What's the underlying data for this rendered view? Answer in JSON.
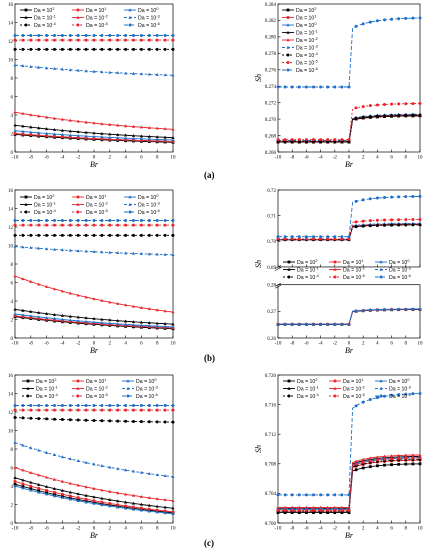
{
  "panel_labels": [
    "(a)",
    "(b)",
    "(c)"
  ],
  "legend_labels": [
    "Da = 10^2",
    "Da = 10^1",
    "Da = 10^0",
    "Da = 10^-1",
    "Da = 10^-2",
    "Da = 10^-3",
    "Da = 10^-4",
    "Da = 10^-5",
    "Da = 10^-6"
  ],
  "series_styles": [
    {
      "color": "#000000",
      "marker": "square",
      "dash": ""
    },
    {
      "color": "#e8262c",
      "marker": "circle",
      "dash": ""
    },
    {
      "color": "#1f6fc8",
      "marker": "triangle",
      "dash": ""
    },
    {
      "color": "#000000",
      "marker": "triangle",
      "dash": ""
    },
    {
      "color": "#e8262c",
      "marker": "triangle",
      "dash": ""
    },
    {
      "color": "#1f6fc8",
      "marker": "triangle",
      "dash": "3,2"
    },
    {
      "color": "#000000",
      "marker": "circle",
      "dash": "2,2"
    },
    {
      "color": "#e8262c",
      "marker": "circle",
      "dash": "2,2"
    },
    {
      "color": "#1f6fc8",
      "marker": "circle",
      "dash": "4,2"
    }
  ],
  "chart_data": [
    {
      "type": "line",
      "id": "a-nu",
      "xlabel": "Br",
      "ylabel": "Nu",
      "xlim": [
        -10,
        10
      ],
      "ylim": [
        0,
        16
      ],
      "xticks": [
        -10,
        -8,
        -6,
        -4,
        -2,
        0,
        2,
        4,
        6,
        8,
        10
      ],
      "yticks": [
        0,
        2,
        4,
        6,
        8,
        10,
        12,
        14,
        16
      ],
      "legend_position": "top-right",
      "series": [
        {
          "name": "Da = 10^2",
          "from": 1.9,
          "to": 1.05,
          "shape": "decay"
        },
        {
          "name": "Da = 10^1",
          "from": 2.0,
          "to": 1.15,
          "shape": "decay"
        },
        {
          "name": "Da = 10^0",
          "from": 2.3,
          "to": 1.3,
          "shape": "decay"
        },
        {
          "name": "Da = 10^-1",
          "from": 2.9,
          "to": 1.55,
          "shape": "decay"
        },
        {
          "name": "Da = 10^-2",
          "from": 4.3,
          "to": 2.45,
          "shape": "decay"
        },
        {
          "name": "Da = 10^-3",
          "from": 9.4,
          "to": 8.3,
          "shape": "decay"
        },
        {
          "name": "Da = 10^-4",
          "from": 11.1,
          "to": 11.1,
          "shape": "flat"
        },
        {
          "name": "Da = 10^-5",
          "from": 12.1,
          "to": 12.1,
          "shape": "flat"
        },
        {
          "name": "Da = 10^-6",
          "from": 12.6,
          "to": 12.6,
          "shape": "flat"
        }
      ]
    },
    {
      "type": "line",
      "id": "a-sh",
      "xlabel": "Br",
      "ylabel": "Sh",
      "xlim": [
        -10,
        10
      ],
      "ylim": [
        0.266,
        0.284
      ],
      "xticks": [
        -10,
        -8,
        -6,
        -4,
        -2,
        0,
        2,
        4,
        6,
        8,
        10
      ],
      "yticks": [
        0.266,
        0.268,
        0.27,
        0.272,
        0.274,
        0.276,
        0.278,
        0.28,
        0.282,
        0.284
      ],
      "legend_position": "top-left",
      "series": [
        {
          "name": "Da = 10^2",
          "from": 0.2672,
          "to": 0.2704,
          "shape": "step"
        },
        {
          "name": "Da = 10^1",
          "from": 0.2672,
          "to": 0.2704,
          "shape": "step"
        },
        {
          "name": "Da = 10^0",
          "from": 0.2673,
          "to": 0.2705,
          "shape": "step"
        },
        {
          "name": "Da = 10^-1",
          "from": 0.2672,
          "to": 0.2704,
          "shape": "step"
        },
        {
          "name": "Da = 10^-2",
          "from": 0.2673,
          "to": 0.2705,
          "shape": "step"
        },
        {
          "name": "Da = 10^-3",
          "from": 0.2674,
          "to": 0.2706,
          "shape": "step"
        },
        {
          "name": "Da = 10^-4",
          "from": 0.2673,
          "to": 0.2705,
          "shape": "step"
        },
        {
          "name": "Da = 10^-5",
          "from": 0.2675,
          "to": 0.2719,
          "shape": "step"
        },
        {
          "name": "Da = 10^-6",
          "from": 0.2739,
          "to": 0.2823,
          "shape": "step"
        }
      ]
    },
    {
      "type": "line",
      "id": "b-nu",
      "xlabel": "Br",
      "ylabel": "Nu",
      "xlim": [
        -10,
        10
      ],
      "ylim": [
        0,
        16
      ],
      "xticks": [
        -10,
        -8,
        -6,
        -4,
        -2,
        0,
        2,
        4,
        6,
        8,
        10
      ],
      "yticks": [
        0,
        2,
        4,
        6,
        8,
        10,
        12,
        14,
        16
      ],
      "legend_position": "top",
      "series": [
        {
          "name": "Da = 10^2",
          "from": 2.3,
          "to": 1.0,
          "shape": "decay"
        },
        {
          "name": "Da = 10^1",
          "from": 2.4,
          "to": 1.1,
          "shape": "decay"
        },
        {
          "name": "Da = 10^0",
          "from": 2.6,
          "to": 1.2,
          "shape": "decay"
        },
        {
          "name": "Da = 10^-1",
          "from": 3.1,
          "to": 1.5,
          "shape": "decay"
        },
        {
          "name": "Da = 10^-2",
          "from": 6.7,
          "to": 2.8,
          "shape": "decay"
        },
        {
          "name": "Da = 10^-3",
          "from": 9.9,
          "to": 9.0,
          "shape": "decay"
        },
        {
          "name": "Da = 10^-4",
          "from": 11.1,
          "to": 11.1,
          "shape": "flat"
        },
        {
          "name": "Da = 10^-5",
          "from": 12.2,
          "to": 12.2,
          "shape": "flat"
        },
        {
          "name": "Da = 10^-6",
          "from": 12.7,
          "to": 12.7,
          "shape": "flat"
        }
      ]
    },
    {
      "type": "line",
      "id": "b-sh",
      "xlabel": "Br",
      "ylabel": "Sh",
      "broken_axis": true,
      "xlim": [
        -10,
        10
      ],
      "ylim_upper": [
        0.69,
        0.72
      ],
      "yticks_upper": [
        0.69,
        0.7,
        0.71,
        0.72
      ],
      "ylim_lower": [
        0.26,
        0.28
      ],
      "yticks_lower": [
        0.26,
        0.27,
        0.28
      ],
      "xticks": [
        -10,
        -8,
        -6,
        -4,
        -2,
        0,
        2,
        4,
        6,
        8,
        10
      ],
      "legend_position": "center",
      "series": [
        {
          "name": "Da = 10^2",
          "from": 0.2651,
          "to": 0.2707,
          "shape": "step",
          "band": "lower"
        },
        {
          "name": "Da = 10^1",
          "from": 0.2652,
          "to": 0.2708,
          "shape": "step",
          "band": "lower"
        },
        {
          "name": "Da = 10^0",
          "from": 0.2652,
          "to": 0.2709,
          "shape": "step",
          "band": "lower"
        },
        {
          "name": "Da = 10^-1",
          "from": 0.7006,
          "to": 0.7065,
          "shape": "step",
          "band": "upper"
        },
        {
          "name": "Da = 10^-2",
          "from": 0.7007,
          "to": 0.7068,
          "shape": "step",
          "band": "upper"
        },
        {
          "name": "Da = 10^-3",
          "from": 0.7008,
          "to": 0.707,
          "shape": "step",
          "band": "upper"
        },
        {
          "name": "Da = 10^-4",
          "from": 0.7006,
          "to": 0.7064,
          "shape": "step",
          "band": "upper"
        },
        {
          "name": "Da = 10^-5",
          "from": 0.7009,
          "to": 0.7085,
          "shape": "step",
          "band": "upper"
        },
        {
          "name": "Da = 10^-6",
          "from": 0.7018,
          "to": 0.7175,
          "shape": "step",
          "band": "upper"
        }
      ]
    },
    {
      "type": "line",
      "id": "c-nu",
      "xlabel": "Br",
      "ylabel": "Nu",
      "xlim": [
        -10,
        10
      ],
      "ylim": [
        0,
        16
      ],
      "xticks": [
        -10,
        -8,
        -6,
        -4,
        -2,
        0,
        2,
        4,
        6,
        8,
        10
      ],
      "yticks": [
        0,
        2,
        4,
        6,
        8,
        10,
        12,
        14,
        16
      ],
      "legend_position": "top",
      "series": [
        {
          "name": "Da = 10^2",
          "from": 4.2,
          "to": 1.1,
          "shape": "decay"
        },
        {
          "name": "Da = 10^1",
          "from": 4.5,
          "to": 1.2,
          "shape": "decay"
        },
        {
          "name": "Da = 10^0",
          "from": 4.0,
          "to": 1.0,
          "shape": "decay"
        },
        {
          "name": "Da = 10^-1",
          "from": 4.9,
          "to": 1.6,
          "shape": "decay"
        },
        {
          "name": "Da = 10^-2",
          "from": 6.0,
          "to": 2.4,
          "shape": "decay"
        },
        {
          "name": "Da = 10^-3",
          "from": 8.7,
          "to": 5.0,
          "shape": "decay"
        },
        {
          "name": "Da = 10^-4",
          "from": 11.4,
          "to": 10.9,
          "shape": "decay"
        },
        {
          "name": "Da = 10^-5",
          "from": 12.2,
          "to": 12.2,
          "shape": "flat"
        },
        {
          "name": "Da = 10^-6",
          "from": 12.7,
          "to": 12.7,
          "shape": "flat"
        }
      ]
    },
    {
      "type": "line",
      "id": "c-sh",
      "xlabel": "Br",
      "ylabel": "Sh",
      "xlim": [
        -10,
        10
      ],
      "ylim": [
        0.7,
        0.72
      ],
      "xticks": [
        -10,
        -8,
        -6,
        -4,
        -2,
        0,
        2,
        4,
        6,
        8,
        10
      ],
      "yticks": [
        0.7,
        0.704,
        0.708,
        0.712,
        0.716,
        0.72
      ],
      "legend_position": "top",
      "series": [
        {
          "name": "Da = 10^2",
          "from": 0.7014,
          "to": 0.708,
          "shape": "step"
        },
        {
          "name": "Da = 10^1",
          "from": 0.7016,
          "to": 0.7085,
          "shape": "step"
        },
        {
          "name": "Da = 10^0",
          "from": 0.7018,
          "to": 0.7088,
          "shape": "step"
        },
        {
          "name": "Da = 10^-1",
          "from": 0.702,
          "to": 0.709,
          "shape": "step"
        },
        {
          "name": "Da = 10^-2",
          "from": 0.7021,
          "to": 0.7092,
          "shape": "step"
        },
        {
          "name": "Da = 10^-3",
          "from": 0.7019,
          "to": 0.7089,
          "shape": "step"
        },
        {
          "name": "Da = 10^-4",
          "from": 0.7016,
          "to": 0.7086,
          "shape": "step"
        },
        {
          "name": "Da = 10^-5",
          "from": 0.7017,
          "to": 0.7088,
          "shape": "step"
        },
        {
          "name": "Da = 10^-6",
          "from": 0.7038,
          "to": 0.7175,
          "shape": "step"
        }
      ]
    }
  ]
}
